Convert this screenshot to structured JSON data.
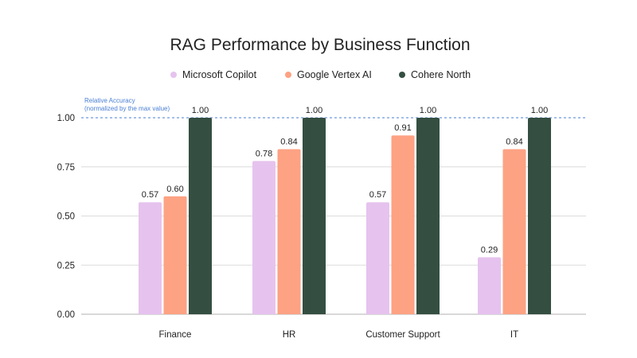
{
  "chart_data": {
    "type": "bar",
    "title": "RAG Performance by Business Function",
    "ylabel": "",
    "xlabel": "",
    "categories": [
      "Finance",
      "HR",
      "Customer Support",
      "IT"
    ],
    "series": [
      {
        "name": "Microsoft Copilot",
        "values": [
          0.57,
          0.78,
          0.57,
          0.29
        ],
        "color": "#e6c3ee"
      },
      {
        "name": "Google Vertex AI",
        "values": [
          0.6,
          0.84,
          0.91,
          0.84
        ],
        "color": "#fda283"
      },
      {
        "name": "Cohere North",
        "values": [
          1.0,
          1.0,
          1.0,
          1.0
        ],
        "color": "#344f42"
      }
    ],
    "value_labels": [
      [
        "0.57",
        "0.78",
        "0.57",
        "0.29"
      ],
      [
        "0.60",
        "0.84",
        "0.91",
        "0.84"
      ],
      [
        "1.00",
        "1.00",
        "1.00",
        "1.00"
      ]
    ],
    "ylim": [
      0,
      1
    ],
    "yticks": [
      0,
      0.25,
      0.5,
      0.75,
      1
    ],
    "ytick_labels": [
      "0.00",
      "0.25",
      "0.50",
      "0.75",
      "1.00"
    ],
    "grid": true,
    "legend_position": "top-center",
    "reference_line": {
      "value": 1.0,
      "style": "dashed",
      "color": "#4a7fd4",
      "label_lines": [
        "Relative Accuracy",
        "(normalized by the max value)"
      ]
    }
  }
}
